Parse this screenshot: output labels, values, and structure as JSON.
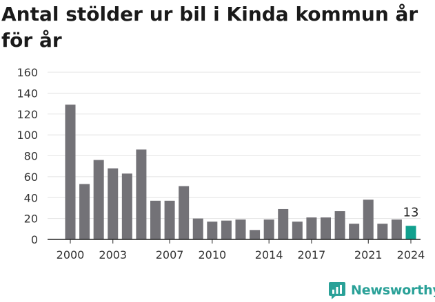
{
  "title": "Antal stölder ur bil i Kinda kommun år för år",
  "brand": {
    "name": "Newsworthy",
    "color": "#2aa198"
  },
  "colors": {
    "bar": "#737277",
    "highlight": "#12a08e",
    "grid": "#e3e3e3",
    "axis": "#222222",
    "text": "#333333"
  },
  "chart_data": {
    "type": "bar",
    "categories": [
      2000,
      2001,
      2002,
      2003,
      2004,
      2005,
      2006,
      2007,
      2008,
      2009,
      2010,
      2011,
      2012,
      2013,
      2014,
      2015,
      2016,
      2017,
      2018,
      2019,
      2020,
      2021,
      2022,
      2023,
      2024
    ],
    "values": [
      129,
      53,
      76,
      68,
      63,
      86,
      37,
      37,
      51,
      20,
      17,
      18,
      19,
      9,
      19,
      29,
      17,
      21,
      21,
      27,
      15,
      38,
      15,
      19,
      13
    ],
    "x_tick_labels": [
      "2000",
      "2003",
      "2007",
      "2010",
      "2014",
      "2017",
      "2021",
      "2024"
    ],
    "y_ticks": [
      0,
      20,
      40,
      60,
      80,
      100,
      120,
      140,
      160
    ],
    "ylim": [
      0,
      160
    ],
    "highlight": {
      "category": 2024,
      "label": "13"
    },
    "grid": true,
    "title": "Antal stölder ur bil i Kinda kommun år för år",
    "xlabel": "",
    "ylabel": ""
  }
}
